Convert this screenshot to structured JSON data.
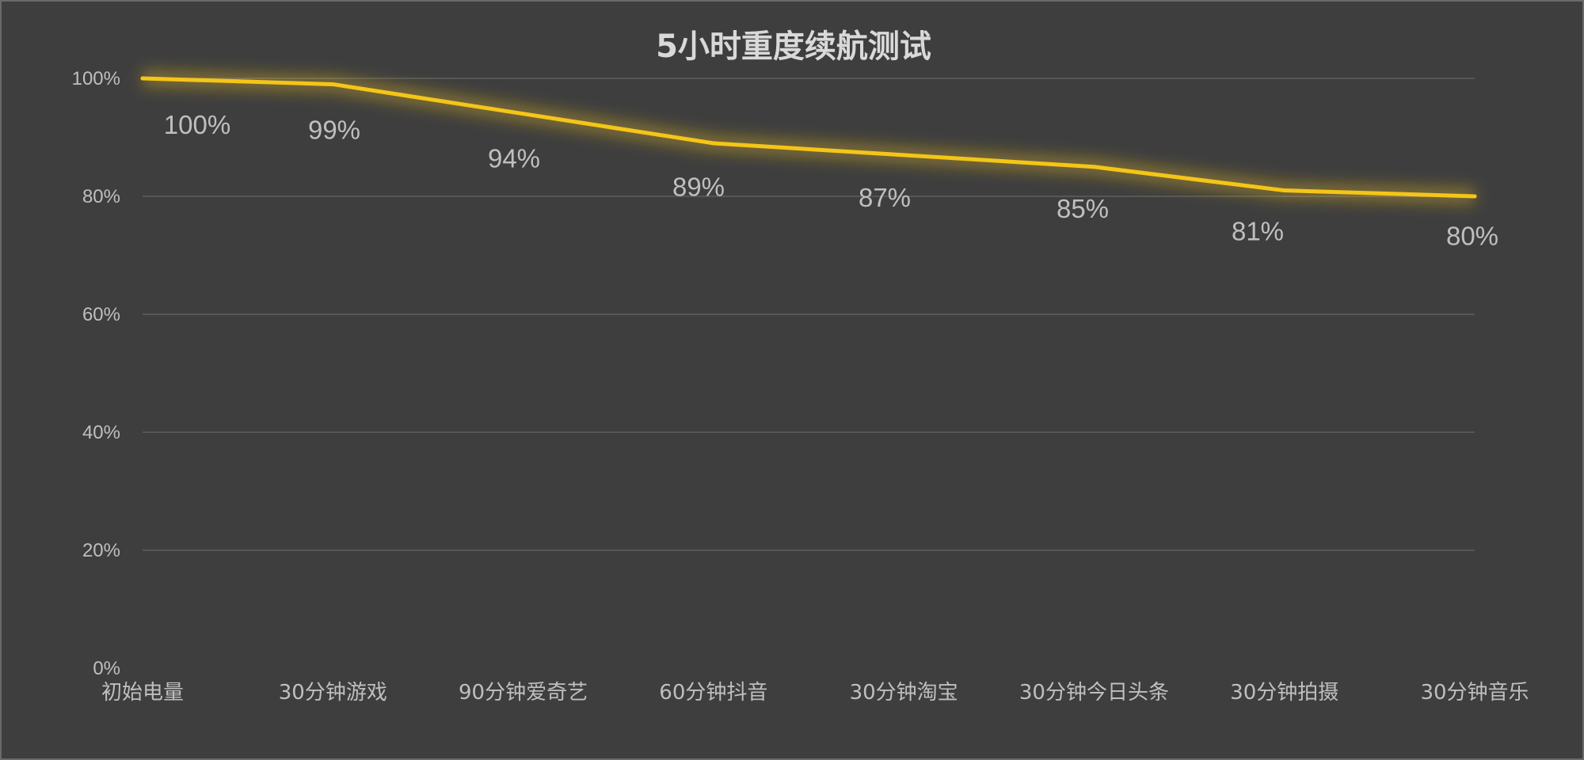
{
  "chart_data": {
    "type": "line",
    "title": "5小时重度续航测试",
    "xlabel": "",
    "ylabel": "",
    "categories": [
      "初始电量",
      "30分钟游戏",
      "90分钟爱奇艺",
      "60分钟抖音",
      "30分钟淘宝",
      "30分钟今日头条",
      "30分钟拍摄",
      "30分钟音乐"
    ],
    "series": [
      {
        "values": [
          100,
          99,
          94,
          89,
          87,
          85,
          81,
          80
        ],
        "labels": [
          "100%",
          "99%",
          "94%",
          "89%",
          "87%",
          "85%",
          "81%",
          "80%"
        ]
      }
    ],
    "yticks": [
      "0%",
      "20%",
      "40%",
      "60%",
      "80%",
      "100%"
    ],
    "ylim": [
      0,
      100
    ],
    "grid": true,
    "legend": "none",
    "colors": {
      "background": "#3e3e3e",
      "line": "#f5c518",
      "grid": "#565656",
      "text": "#bfbfbf",
      "title": "#d9d9d9"
    }
  }
}
